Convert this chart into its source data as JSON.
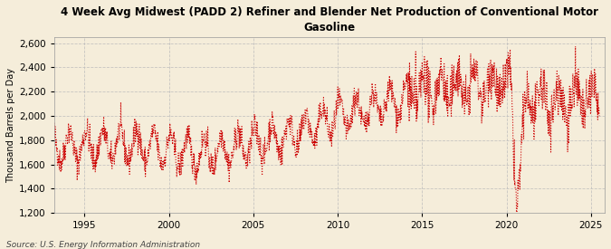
{
  "title_line1": "4 Week Avg Midwest (PADD 2) Refiner and Blender Net Production of Conventional Motor",
  "title_line2": "Gasoline",
  "ylabel": "Thousand Barrels per Day",
  "source": "Source: U.S. Energy Information Administration",
  "background_color": "#f5edda",
  "line_color": "#cc0000",
  "ylim": [
    1200,
    2650
  ],
  "yticks": [
    1200,
    1400,
    1600,
    1800,
    2000,
    2200,
    2400,
    2600
  ],
  "xlim_start": 1993.2,
  "xlim_end": 2025.8,
  "xticks": [
    1995,
    2000,
    2005,
    2010,
    2015,
    2020,
    2025
  ],
  "grid_color": "#bbbbbb",
  "figsize": [
    6.75,
    2.75
  ],
  "dpi": 100
}
